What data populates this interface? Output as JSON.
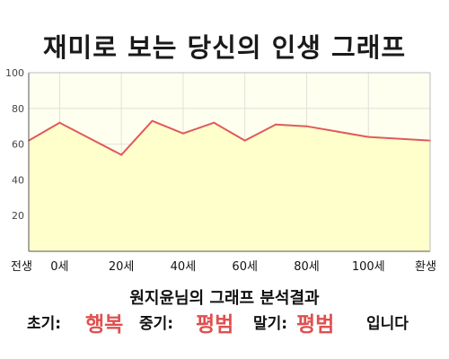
{
  "page": {
    "title": "재미로 보는 당신의 인생 그래프"
  },
  "chart_data": {
    "type": "area",
    "title": "재미로 보는 당신의 인생 그래프",
    "xlabel": "",
    "ylabel": "",
    "ylim": [
      0,
      100
    ],
    "yticks": [
      20,
      40,
      60,
      80,
      100
    ],
    "x_tick_labels": [
      "전생",
      "0세",
      "20세",
      "40세",
      "60세",
      "80세",
      "100세",
      "환생"
    ],
    "grid": true,
    "x": [
      "전생",
      "0세",
      "10세",
      "20세",
      "30세",
      "40세",
      "50세",
      "60세",
      "70세",
      "80세",
      "90세",
      "100세",
      "110세",
      "환생"
    ],
    "values": [
      62,
      72,
      63,
      54,
      73,
      66,
      72,
      62,
      71,
      70,
      67,
      64,
      63,
      62
    ],
    "colors": {
      "line": "#e05a5a",
      "fill": "#ffffcc",
      "plot_bg": "#fffff0",
      "grid": "#e0e0d8"
    }
  },
  "summary": {
    "heading": "원지윤님의 그래프 분석결과",
    "early_label": "초기:",
    "early_value": "행복",
    "middle_label": "중기:",
    "middle_value": "평범",
    "late_label": "말기:",
    "late_value": "평범",
    "ending": "입니다"
  }
}
